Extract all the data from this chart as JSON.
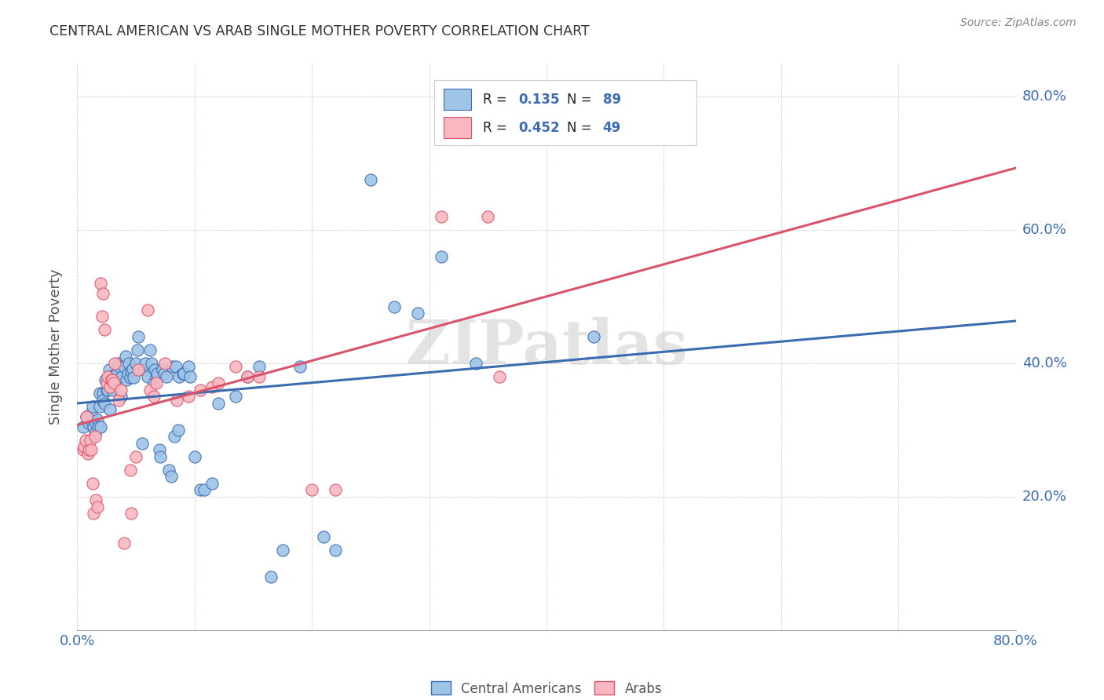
{
  "title": "CENTRAL AMERICAN VS ARAB SINGLE MOTHER POVERTY CORRELATION CHART",
  "source": "Source: ZipAtlas.com",
  "ylabel": "Single Mother Poverty",
  "xlim": [
    0.0,
    0.8
  ],
  "ylim": [
    0.0,
    0.85
  ],
  "xtick_positions": [
    0.0,
    0.1,
    0.2,
    0.3,
    0.4,
    0.5,
    0.6,
    0.7,
    0.8
  ],
  "xticklabels": [
    "0.0%",
    "",
    "",
    "",
    "",
    "",
    "",
    "",
    "80.0%"
  ],
  "ytick_positions": [
    0.2,
    0.4,
    0.6,
    0.8
  ],
  "ytick_labels": [
    "20.0%",
    "40.0%",
    "60.0%",
    "80.0%"
  ],
  "blue_R": "0.135",
  "blue_N": "89",
  "pink_R": "0.452",
  "pink_N": "49",
  "blue_fill": "#9EC4E8",
  "pink_fill": "#F9B8C0",
  "blue_line_color": "#3B6BB0",
  "pink_line_color": "#D9546A",
  "blue_scatter": [
    [
      0.005,
      0.305
    ],
    [
      0.008,
      0.32
    ],
    [
      0.01,
      0.31
    ],
    [
      0.012,
      0.325
    ],
    [
      0.013,
      0.335
    ],
    [
      0.013,
      0.31
    ],
    [
      0.014,
      0.305
    ],
    [
      0.015,
      0.295
    ],
    [
      0.016,
      0.31
    ],
    [
      0.017,
      0.315
    ],
    [
      0.018,
      0.305
    ],
    [
      0.019,
      0.335
    ],
    [
      0.019,
      0.355
    ],
    [
      0.02,
      0.305
    ],
    [
      0.022,
      0.355
    ],
    [
      0.022,
      0.345
    ],
    [
      0.023,
      0.34
    ],
    [
      0.024,
      0.375
    ],
    [
      0.025,
      0.36
    ],
    [
      0.026,
      0.36
    ],
    [
      0.027,
      0.39
    ],
    [
      0.028,
      0.38
    ],
    [
      0.028,
      0.33
    ],
    [
      0.03,
      0.36
    ],
    [
      0.031,
      0.37
    ],
    [
      0.032,
      0.375
    ],
    [
      0.033,
      0.385
    ],
    [
      0.034,
      0.385
    ],
    [
      0.035,
      0.4
    ],
    [
      0.036,
      0.395
    ],
    [
      0.037,
      0.35
    ],
    [
      0.038,
      0.38
    ],
    [
      0.04,
      0.395
    ],
    [
      0.041,
      0.41
    ],
    [
      0.042,
      0.375
    ],
    [
      0.043,
      0.385
    ],
    [
      0.044,
      0.4
    ],
    [
      0.045,
      0.378
    ],
    [
      0.046,
      0.388
    ],
    [
      0.047,
      0.392
    ],
    [
      0.048,
      0.378
    ],
    [
      0.05,
      0.4
    ],
    [
      0.051,
      0.42
    ],
    [
      0.052,
      0.44
    ],
    [
      0.055,
      0.28
    ],
    [
      0.057,
      0.39
    ],
    [
      0.058,
      0.4
    ],
    [
      0.06,
      0.38
    ],
    [
      0.062,
      0.42
    ],
    [
      0.063,
      0.4
    ],
    [
      0.065,
      0.37
    ],
    [
      0.066,
      0.39
    ],
    [
      0.067,
      0.38
    ],
    [
      0.068,
      0.385
    ],
    [
      0.07,
      0.27
    ],
    [
      0.071,
      0.26
    ],
    [
      0.073,
      0.39
    ],
    [
      0.074,
      0.385
    ],
    [
      0.076,
      0.38
    ],
    [
      0.078,
      0.24
    ],
    [
      0.08,
      0.23
    ],
    [
      0.081,
      0.395
    ],
    [
      0.083,
      0.29
    ],
    [
      0.084,
      0.395
    ],
    [
      0.086,
      0.3
    ],
    [
      0.087,
      0.38
    ],
    [
      0.09,
      0.385
    ],
    [
      0.091,
      0.385
    ],
    [
      0.095,
      0.395
    ],
    [
      0.096,
      0.38
    ],
    [
      0.1,
      0.26
    ],
    [
      0.105,
      0.21
    ],
    [
      0.108,
      0.21
    ],
    [
      0.115,
      0.22
    ],
    [
      0.12,
      0.34
    ],
    [
      0.135,
      0.35
    ],
    [
      0.145,
      0.38
    ],
    [
      0.155,
      0.395
    ],
    [
      0.165,
      0.08
    ],
    [
      0.175,
      0.12
    ],
    [
      0.19,
      0.395
    ],
    [
      0.21,
      0.14
    ],
    [
      0.22,
      0.12
    ],
    [
      0.25,
      0.675
    ],
    [
      0.27,
      0.485
    ],
    [
      0.29,
      0.475
    ],
    [
      0.31,
      0.56
    ],
    [
      0.34,
      0.4
    ],
    [
      0.44,
      0.44
    ]
  ],
  "pink_scatter": [
    [
      0.005,
      0.27
    ],
    [
      0.006,
      0.275
    ],
    [
      0.007,
      0.285
    ],
    [
      0.008,
      0.32
    ],
    [
      0.009,
      0.265
    ],
    [
      0.01,
      0.27
    ],
    [
      0.011,
      0.285
    ],
    [
      0.012,
      0.27
    ],
    [
      0.013,
      0.22
    ],
    [
      0.014,
      0.175
    ],
    [
      0.015,
      0.29
    ],
    [
      0.016,
      0.195
    ],
    [
      0.017,
      0.185
    ],
    [
      0.02,
      0.52
    ],
    [
      0.021,
      0.47
    ],
    [
      0.022,
      0.505
    ],
    [
      0.023,
      0.45
    ],
    [
      0.025,
      0.37
    ],
    [
      0.026,
      0.38
    ],
    [
      0.028,
      0.365
    ],
    [
      0.029,
      0.375
    ],
    [
      0.03,
      0.375
    ],
    [
      0.031,
      0.37
    ],
    [
      0.032,
      0.4
    ],
    [
      0.035,
      0.345
    ],
    [
      0.037,
      0.36
    ],
    [
      0.04,
      0.13
    ],
    [
      0.045,
      0.24
    ],
    [
      0.046,
      0.175
    ],
    [
      0.05,
      0.26
    ],
    [
      0.052,
      0.39
    ],
    [
      0.06,
      0.48
    ],
    [
      0.062,
      0.36
    ],
    [
      0.065,
      0.35
    ],
    [
      0.067,
      0.37
    ],
    [
      0.075,
      0.4
    ],
    [
      0.085,
      0.345
    ],
    [
      0.095,
      0.35
    ],
    [
      0.105,
      0.36
    ],
    [
      0.115,
      0.365
    ],
    [
      0.12,
      0.37
    ],
    [
      0.135,
      0.395
    ],
    [
      0.145,
      0.38
    ],
    [
      0.155,
      0.38
    ],
    [
      0.2,
      0.21
    ],
    [
      0.22,
      0.21
    ],
    [
      0.31,
      0.62
    ],
    [
      0.35,
      0.62
    ],
    [
      0.36,
      0.38
    ]
  ],
  "watermark": "ZIPatlas",
  "background_color": "#ffffff",
  "grid_color": "#d0d0d0"
}
